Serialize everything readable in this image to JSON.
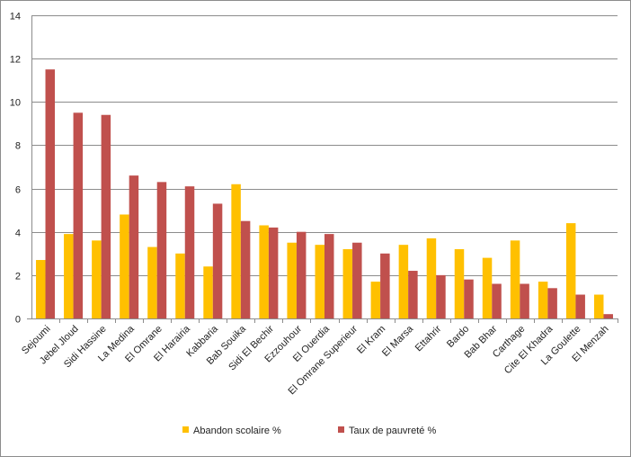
{
  "chart_data": {
    "type": "bar",
    "categories": [
      "Sejoumi",
      "Jebel Jloud",
      "Sidi Hassine",
      "La Medina",
      "El Omrane",
      "El Harairia",
      "Kabbaria",
      "Bab Souika",
      "Sidi El Bechir",
      "Ezzouhour",
      "El Ouerdia",
      "El Omrane Superieur",
      "El Kram",
      "El Marsa",
      "Ettahrir",
      "Bardo",
      "Bab Bhar",
      "Carthage",
      "Cite El Khadra",
      "La Goulette",
      "El Menzah"
    ],
    "series": [
      {
        "name": "Abandon scolaire %",
        "color": "#ffc000",
        "values": [
          2.7,
          3.9,
          3.6,
          4.8,
          3.3,
          3.0,
          2.4,
          6.2,
          4.3,
          3.5,
          3.4,
          3.2,
          1.7,
          3.4,
          3.7,
          3.2,
          2.8,
          3.6,
          1.7,
          4.4,
          1.1
        ]
      },
      {
        "name": "Taux de pauvreté %",
        "color": "#c0504d",
        "values": [
          11.5,
          9.5,
          9.4,
          6.6,
          6.3,
          6.1,
          5.3,
          4.5,
          4.2,
          4.0,
          3.9,
          3.5,
          3.0,
          2.2,
          2.0,
          1.8,
          1.6,
          1.6,
          1.4,
          1.1,
          0.2
        ]
      }
    ],
    "ylim": [
      0,
      14
    ],
    "yticks": [
      0,
      2,
      4,
      6,
      8,
      10,
      12,
      14
    ],
    "grid": true,
    "legend_position": "bottom"
  }
}
